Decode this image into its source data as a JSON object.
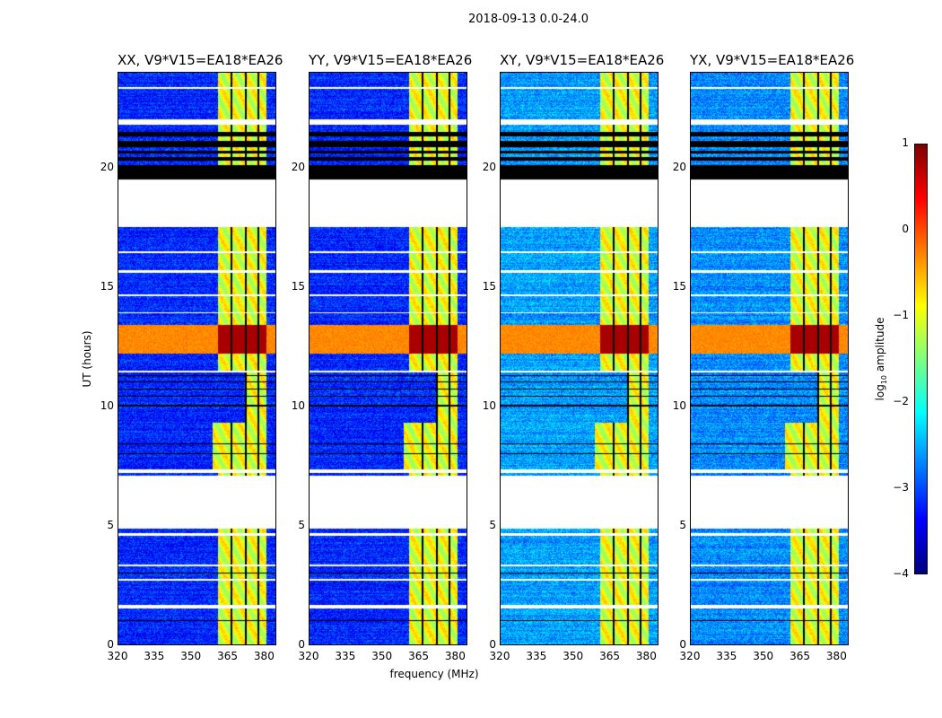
{
  "chart_data": {
    "type": "heatmap",
    "title": "2018-09-13 0.0-24.0",
    "xlabel": "frequency (MHz)",
    "ylabel": "UT (hours)",
    "xlim": [
      320,
      385
    ],
    "ylim": [
      0,
      24
    ],
    "xticks": [
      320,
      335,
      350,
      365,
      380
    ],
    "yticks": [
      0,
      5,
      10,
      15,
      20
    ],
    "colorbar": {
      "label_prefix": "log",
      "label_sub": "10",
      "label_suffix": " amplitude",
      "range": [
        -4,
        1
      ],
      "ticks": [
        1,
        0,
        -1,
        -2,
        -3,
        -4
      ],
      "tick_labels": [
        "1",
        "0",
        "−1",
        "−2",
        "−3",
        "−4"
      ],
      "colormap": "jet"
    },
    "panels": [
      {
        "title": "XX, V9*V15=EA18*EA26",
        "base_level": -3.2
      },
      {
        "title": "YY, V9*V15=EA18*EA26",
        "base_level": -3.2
      },
      {
        "title": "XY, V9*V15=EA18*EA26",
        "base_level": -2.6
      },
      {
        "title": "YX, V9*V15=EA18*EA26",
        "base_level": -2.7
      }
    ],
    "rfi_band_mhz": [
      361,
      381
    ],
    "rfi_level": -1.0,
    "rfi_gaps_mhz": [
      366.5,
      372.5,
      377.5
    ],
    "strong_event_hours": [
      12.2,
      13.4
    ],
    "strong_event_level": 0.8,
    "flagged_white_hours": [
      [
        4.9,
        7.1
      ],
      [
        17.5,
        19.5
      ],
      [
        7.2,
        7.35
      ],
      [
        1.55,
        1.7
      ],
      [
        2.7,
        2.78
      ],
      [
        3.3,
        3.38
      ],
      [
        4.6,
        4.68
      ],
      [
        11.4,
        11.5
      ],
      [
        13.9,
        13.95
      ],
      [
        14.6,
        14.7
      ],
      [
        15.6,
        15.7
      ],
      [
        16.4,
        16.5
      ],
      [
        21.8,
        22.0
      ],
      [
        23.3,
        23.36
      ]
    ],
    "flagged_black_hours": [
      [
        19.5,
        20.1
      ],
      [
        20.3,
        20.45
      ],
      [
        20.6,
        20.7
      ],
      [
        20.85,
        21.1
      ],
      [
        21.3,
        21.5
      ],
      [
        10.0,
        10.05
      ],
      [
        10.4,
        10.45
      ],
      [
        10.7,
        10.75
      ],
      [
        11.0,
        11.05
      ],
      [
        11.25,
        11.3
      ],
      [
        8.0,
        8.05
      ],
      [
        8.4,
        8.45
      ],
      [
        3.0,
        3.05
      ],
      [
        1.0,
        1.05
      ]
    ]
  }
}
